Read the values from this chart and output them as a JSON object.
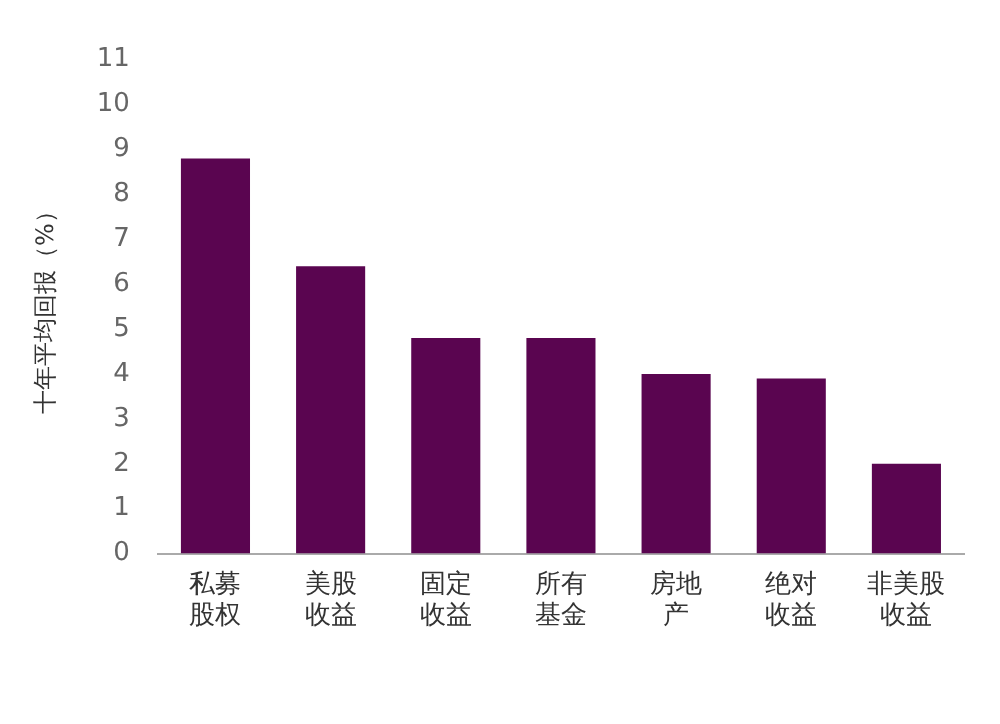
{
  "chart_data": {
    "type": "bar",
    "ylabel": "十年平均回报（%）",
    "categories": [
      "私募股权",
      "美股收益",
      "固定收益",
      "所有基金",
      "房地产",
      "绝对收益",
      "非美股收益"
    ],
    "values": [
      8.8,
      6.4,
      4.8,
      4.8,
      4.0,
      3.9,
      2.0
    ],
    "color": "#5a0550",
    "ylim": [
      0,
      11
    ],
    "yticks": [
      0,
      1,
      2,
      3,
      4,
      5,
      6,
      7,
      8,
      9,
      10,
      11
    ],
    "grid": false,
    "legend": false
  }
}
